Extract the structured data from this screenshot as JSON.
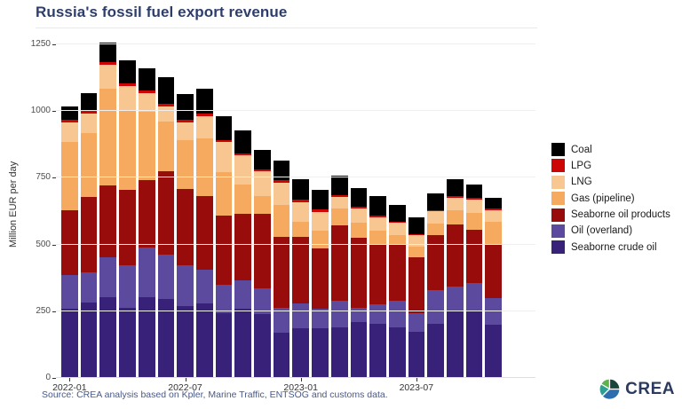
{
  "title": "Russia's fossil fuel export revenue",
  "source_note": "Source: CREA analysis based on Kpler, Marine Traffic, ENTSOG and customs data.",
  "logo": {
    "text": "CREA",
    "icon_colors": [
      "#5eb14c",
      "#2f9e93",
      "#2d6fae",
      "#18453a"
    ],
    "text_color": "#2b3a5e"
  },
  "colors": {
    "title": "#2e3e6c",
    "source_text": "#47598c",
    "axis_text": "#4d4d4d",
    "gridline": "#efefef"
  },
  "chart_data": {
    "type": "bar",
    "stacked": true,
    "title": "Russia's fossil fuel export revenue",
    "xlabel": "",
    "ylabel": "Million EUR per day",
    "ylim": [
      0,
      1300
    ],
    "yticks": [
      0,
      250,
      500,
      750,
      1000,
      1250
    ],
    "grid": true,
    "legend_position": "right",
    "categories": [
      "2022-01",
      "2022-02",
      "2022-03",
      "2022-04",
      "2022-05",
      "2022-06",
      "2022-07",
      "2022-08",
      "2022-09",
      "2022-10",
      "2022-11",
      "2022-12",
      "2023-01",
      "2023-02",
      "2023-03",
      "2023-04",
      "2023-05",
      "2023-06",
      "2023-07",
      "2023-08",
      "2023-09",
      "2023-10",
      "2023-11"
    ],
    "xtick_labels": [
      {
        "index": 0,
        "label": "2022-01"
      },
      {
        "index": 6,
        "label": "2022-07"
      },
      {
        "index": 12,
        "label": "2023-01"
      },
      {
        "index": 18,
        "label": "2023-07"
      }
    ],
    "series": [
      {
        "name": "Seaborne crude oil",
        "color": "#382179",
        "values": [
          258,
          282,
          302,
          263,
          302,
          296,
          271,
          280,
          243,
          258,
          241,
          169,
          186,
          188,
          191,
          208,
          202,
          191,
          173,
          202,
          249,
          252,
          199
        ]
      },
      {
        "name": "Oil (overland)",
        "color": "#5b4a9e",
        "values": [
          127,
          114,
          149,
          161,
          188,
          166,
          153,
          127,
          105,
          107,
          94,
          94,
          92,
          73,
          100,
          55,
          74,
          100,
          70,
          128,
          94,
          105,
          100
        ]
      },
      {
        "name": "Seaborne oil products",
        "color": "#990c0c",
        "values": [
          243,
          281,
          271,
          282,
          252,
          312,
          285,
          274,
          262,
          250,
          279,
          266,
          251,
          223,
          282,
          264,
          222,
          207,
          208,
          204,
          232,
          199,
          199
        ]
      },
      {
        "name": "Gas (pipeline)",
        "color": "#f5aa5f",
        "values": [
          255,
          241,
          362,
          298,
          257,
          186,
          183,
          218,
          162,
          109,
          69,
          121,
          57,
          67,
          63,
          55,
          53,
          36,
          41,
          44,
          53,
          63,
          88
        ]
      },
      {
        "name": "LNG",
        "color": "#f8c690",
        "values": [
          75,
          73,
          89,
          91,
          68,
          59,
          66,
          83,
          113,
          109,
          91,
          83,
          73,
          72,
          42,
          54,
          52,
          48,
          42,
          47,
          47,
          48,
          42
        ]
      },
      {
        "name": "LPG",
        "color": "#cc0505",
        "values": [
          10,
          11,
          10,
          9,
          9,
          10,
          10,
          9,
          7,
          7,
          7,
          8,
          8,
          7,
          8,
          7,
          5,
          4,
          6,
          5,
          8,
          8,
          6
        ]
      },
      {
        "name": "Coal",
        "color": "#000000",
        "values": [
          51,
          65,
          75,
          88,
          85,
          99,
          97,
          93,
          90,
          89,
          74,
          75,
          77,
          76,
          72,
          68,
          72,
          64,
          63,
          61,
          61,
          49,
          41
        ]
      }
    ],
    "legend": [
      {
        "label": "Coal",
        "color": "#000000"
      },
      {
        "label": "LPG",
        "color": "#cc0505"
      },
      {
        "label": "LNG",
        "color": "#f8c690"
      },
      {
        "label": "Gas (pipeline)",
        "color": "#f5aa5f"
      },
      {
        "label": "Seaborne oil products",
        "color": "#990c0c"
      },
      {
        "label": "Oil (overland)",
        "color": "#5b4a9e"
      },
      {
        "label": "Seaborne crude oil",
        "color": "#382179"
      }
    ]
  }
}
